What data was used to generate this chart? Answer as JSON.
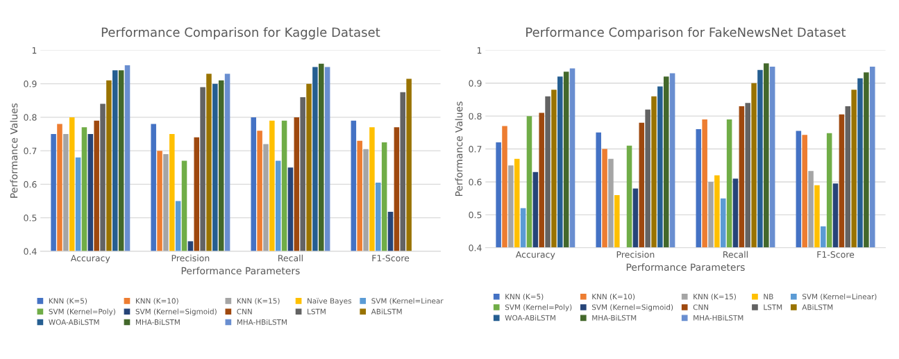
{
  "chart_data": [
    {
      "type": "bar",
      "title": "Performance Comparison for Kaggle Dataset",
      "xlabel": "Performance Parameters",
      "ylabel": "Performance Values",
      "categories": [
        "Accuracy",
        "Precision",
        "Recall",
        "F1-Score"
      ],
      "ylim": [
        0.4,
        1
      ],
      "yticks": [
        0.4,
        0.5,
        0.6,
        0.7,
        0.8,
        0.9,
        1
      ],
      "grid": "y",
      "legend": "bottom",
      "series": [
        {
          "name": "KNN (K=5)",
          "color": "#4472c4",
          "values": [
            0.75,
            0.78,
            0.8,
            0.79
          ]
        },
        {
          "name": "KNN (K=10)",
          "color": "#ed7d31",
          "values": [
            0.78,
            0.7,
            0.76,
            0.73
          ]
        },
        {
          "name": "KNN (K=15)",
          "color": "#a5a5a5",
          "values": [
            0.75,
            0.69,
            0.72,
            0.705
          ]
        },
        {
          "name": "Naïve Bayes",
          "color": "#ffc000",
          "values": [
            0.8,
            0.75,
            0.79,
            0.77
          ]
        },
        {
          "name": "SVM (Kernel=Linear",
          "color": "#5b9bd5",
          "values": [
            0.68,
            0.55,
            0.67,
            0.605
          ]
        },
        {
          "name": "SVM (Kernel=Poly)",
          "color": "#70ad47",
          "values": [
            0.77,
            0.67,
            0.79,
            0.725
          ]
        },
        {
          "name": "SVM (Kernel=Sigmoid)",
          "color": "#264478",
          "values": [
            0.75,
            0.43,
            0.65,
            0.518
          ]
        },
        {
          "name": "CNN",
          "color": "#9e480e",
          "values": [
            0.79,
            0.74,
            0.8,
            0.77
          ]
        },
        {
          "name": "LSTM",
          "color": "#636363",
          "values": [
            0.84,
            0.89,
            0.86,
            0.875
          ]
        },
        {
          "name": "ABiLSTM",
          "color": "#997300",
          "values": [
            0.91,
            0.93,
            0.9,
            0.915
          ]
        },
        {
          "name": "WOA-ABiLSTM",
          "color": "#255e91",
          "values": [
            0.94,
            0.9,
            0.95,
            null
          ]
        },
        {
          "name": "MHA-BiLSTM",
          "color": "#43682b",
          "values": [
            0.94,
            0.91,
            0.96,
            null
          ]
        },
        {
          "name": "MHA-HBiLSTM",
          "color": "#698ed0",
          "values": [
            0.955,
            0.93,
            0.95,
            null
          ]
        }
      ]
    },
    {
      "type": "bar",
      "title": "Performance Comparison for FakeNewsNet Dataset",
      "xlabel": "Performance Parameters",
      "ylabel": "Performance Values",
      "categories": [
        "Accuracy",
        "Precision",
        "Recall",
        "F1-Score"
      ],
      "ylim": [
        0.4,
        1
      ],
      "yticks": [
        0.4,
        0.5,
        0.6,
        0.7,
        0.8,
        0.9,
        1
      ],
      "grid": "y",
      "legend": "bottom",
      "series": [
        {
          "name": "KNN (K=5)",
          "color": "#4472c4",
          "values": [
            0.72,
            0.75,
            0.76,
            0.755
          ]
        },
        {
          "name": "KNN (K=10)",
          "color": "#ed7d31",
          "values": [
            0.77,
            0.7,
            0.79,
            0.743
          ]
        },
        {
          "name": "KNN (K=15)",
          "color": "#a5a5a5",
          "values": [
            0.65,
            0.67,
            0.6,
            0.633
          ]
        },
        {
          "name": "NB",
          "color": "#ffc000",
          "values": [
            0.67,
            0.56,
            0.62,
            0.59
          ]
        },
        {
          "name": "SVM (Kernel=Linear)",
          "color": "#5b9bd5",
          "values": [
            0.52,
            null,
            0.55,
            0.465
          ]
        },
        {
          "name": "SVM (Kernel=Poly)",
          "color": "#70ad47",
          "values": [
            0.8,
            0.71,
            0.79,
            0.748
          ]
        },
        {
          "name": "SVM (Kernel=Sigmoid)",
          "color": "#264478",
          "values": [
            0.63,
            0.58,
            0.61,
            0.595
          ]
        },
        {
          "name": "CNN",
          "color": "#9e480e",
          "values": [
            0.81,
            0.78,
            0.83,
            0.805
          ]
        },
        {
          "name": "LSTM",
          "color": "#636363",
          "values": [
            0.86,
            0.82,
            0.84,
            0.83
          ]
        },
        {
          "name": "ABiLSTM",
          "color": "#997300",
          "values": [
            0.88,
            0.86,
            0.9,
            0.88
          ]
        },
        {
          "name": "WOA-ABiLSTM",
          "color": "#255e91",
          "values": [
            0.92,
            0.89,
            0.94,
            0.915
          ]
        },
        {
          "name": "MHA-BiLSTM",
          "color": "#43682b",
          "values": [
            0.935,
            0.92,
            0.96,
            0.933
          ]
        },
        {
          "name": "MHA-HBiLSTM",
          "color": "#698ed0",
          "values": [
            0.945,
            0.93,
            0.95,
            0.95
          ]
        }
      ]
    }
  ]
}
